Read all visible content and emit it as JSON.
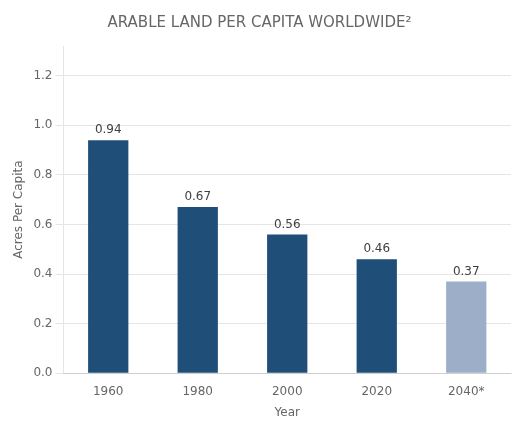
{
  "chart_data": {
    "type": "bar",
    "title": "ARABLE LAND PER CAPITA WORLDWIDE²",
    "xlabel": "Year",
    "ylabel": "Acres Per Capita",
    "categories": [
      "1960",
      "1980",
      "2000",
      "2020",
      "2040*"
    ],
    "values": [
      0.94,
      0.67,
      0.56,
      0.46,
      0.37
    ],
    "colors": [
      "#1f4e79",
      "#1f4e79",
      "#1f4e79",
      "#1f4e79",
      "#9dafc8"
    ],
    "ylim": [
      0,
      1.32
    ],
    "yticks": [
      {
        "value": 0,
        "label": "0.0"
      },
      0.2,
      0.4,
      0.6,
      0.8,
      {
        "value": 1.0,
        "label": "1.0"
      },
      1.2
    ],
    "grid": true,
    "data_labels": true
  }
}
